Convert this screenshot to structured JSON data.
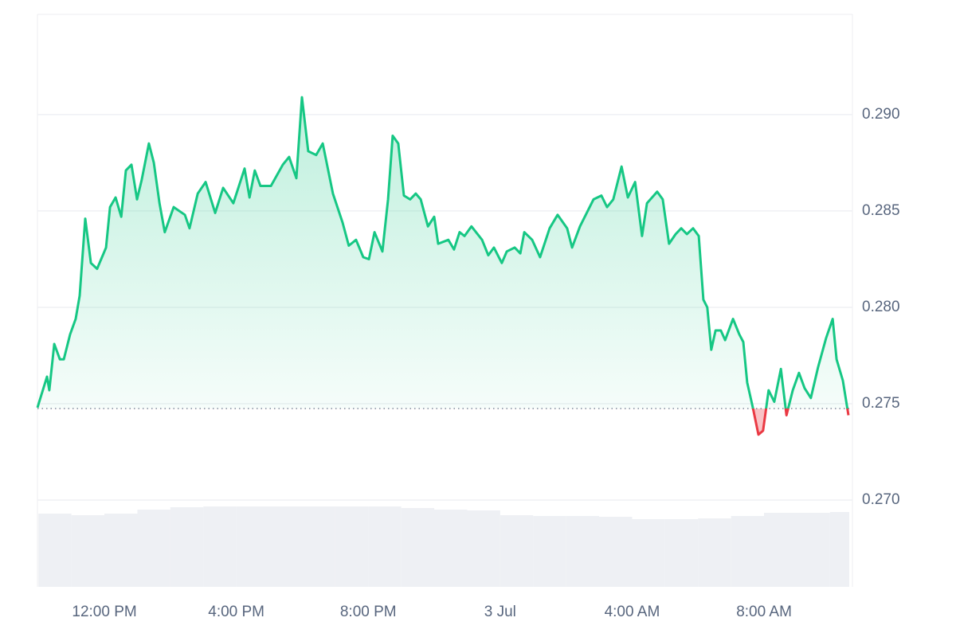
{
  "chart_data": {
    "type": "line",
    "x": [
      9.97,
      10.26,
      10.33,
      10.48,
      10.65,
      10.77,
      10.96,
      11.13,
      11.25,
      11.42,
      11.59,
      11.78,
      12.05,
      12.17,
      12.34,
      12.51,
      12.65,
      12.82,
      12.99,
      13.13,
      13.35,
      13.5,
      13.67,
      13.83,
      14.1,
      14.44,
      14.58,
      14.83,
      15.07,
      15.36,
      15.6,
      15.91,
      16.25,
      16.4,
      16.56,
      16.73,
      17.05,
      17.41,
      17.6,
      17.82,
      17.99,
      18.18,
      18.42,
      18.62,
      18.93,
      19.22,
      19.41,
      19.63,
      19.85,
      20.02,
      20.19,
      20.43,
      20.6,
      20.74,
      20.91,
      21.08,
      21.27,
      21.44,
      21.59,
      21.81,
      22.0,
      22.12,
      22.43,
      22.6,
      22.77,
      22.92,
      23.13,
      23.45,
      23.64,
      23.81,
      24.05,
      24.2,
      24.44,
      24.61,
      24.73,
      24.97,
      25.21,
      25.5,
      25.74,
      26.03,
      26.18,
      26.42,
      26.83,
      27.07,
      27.24,
      27.43,
      27.68,
      27.87,
      28.09,
      28.3,
      28.45,
      28.76,
      28.93,
      29.12,
      29.32,
      29.49,
      29.66,
      29.85,
      30.02,
      30.16,
      30.28,
      30.4,
      30.53,
      30.69,
      30.82,
      31.06,
      31.25,
      31.37,
      31.49,
      31.66,
      31.83,
      31.97,
      32.14,
      32.31,
      32.51,
      32.68,
      32.87,
      33.06,
      33.23,
      33.42,
      33.64,
      33.88,
      34.08,
      34.2,
      34.39,
      34.56
    ],
    "values": [
      0.2748,
      0.2764,
      0.2757,
      0.2781,
      0.2773,
      0.2773,
      0.2786,
      0.2794,
      0.2806,
      0.2846,
      0.2823,
      0.282,
      0.2831,
      0.2852,
      0.2857,
      0.2847,
      0.2871,
      0.2874,
      0.2856,
      0.2866,
      0.2885,
      0.2875,
      0.2854,
      0.2839,
      0.2852,
      0.2848,
      0.2841,
      0.2859,
      0.2865,
      0.2849,
      0.2862,
      0.2854,
      0.2872,
      0.2857,
      0.2871,
      0.2863,
      0.2863,
      0.2874,
      0.2878,
      0.2867,
      0.2909,
      0.2881,
      0.2879,
      0.2885,
      0.2859,
      0.2844,
      0.2832,
      0.2835,
      0.2826,
      0.2825,
      0.2839,
      0.2829,
      0.2856,
      0.2889,
      0.2885,
      0.2858,
      0.2856,
      0.2859,
      0.2856,
      0.2842,
      0.2847,
      0.2833,
      0.2835,
      0.283,
      0.2839,
      0.2837,
      0.2842,
      0.2835,
      0.2827,
      0.2831,
      0.2823,
      0.2829,
      0.2831,
      0.2828,
      0.2839,
      0.2835,
      0.2826,
      0.2841,
      0.2848,
      0.2841,
      0.2831,
      0.2842,
      0.2856,
      0.2858,
      0.2852,
      0.2856,
      0.2873,
      0.2857,
      0.2865,
      0.2837,
      0.2854,
      0.286,
      0.2856,
      0.2833,
      0.2838,
      0.2841,
      0.2838,
      0.2841,
      0.2837,
      0.2804,
      0.28,
      0.2778,
      0.2788,
      0.2788,
      0.2783,
      0.2794,
      0.2786,
      0.2782,
      0.2761,
      0.2748,
      0.2734,
      0.2736,
      0.2757,
      0.2751,
      0.2768,
      0.2744,
      0.2757,
      0.2766,
      0.2758,
      0.2753,
      0.2769,
      0.2784,
      0.2794,
      0.2773,
      0.2762,
      0.2744
    ],
    "color": "#16c784",
    "down_color": "#ea3943",
    "baseline": 0.27475,
    "xlim": [
      9.97,
      34.68
    ],
    "xticks": [
      {
        "value": 12,
        "label": "12:00 PM"
      },
      {
        "value": 16,
        "label": "4:00 PM"
      },
      {
        "value": 20,
        "label": "8:00 PM"
      },
      {
        "value": 24,
        "label": "3 Jul"
      },
      {
        "value": 28,
        "label": "4:00 AM"
      },
      {
        "value": 32,
        "label": "8:00 AM"
      }
    ],
    "ylim": [
      0.2655,
      0.2952
    ],
    "yticks": [
      {
        "value": 0.27,
        "label": "0.270"
      },
      0.275,
      {
        "value": 0.28,
        "label": "0.280"
      },
      0.285,
      {
        "value": 0.29,
        "label": "0.290"
      }
    ],
    "grid": true,
    "volume": {
      "color": "#eef0f4",
      "x": [
        10,
        11,
        12,
        13,
        14,
        15,
        16,
        17,
        18,
        19,
        20,
        21,
        22,
        23,
        24,
        25,
        26,
        27,
        28,
        29,
        30,
        31,
        32,
        33,
        34
      ],
      "values": [
        92,
        90,
        92,
        97,
        100,
        101,
        101,
        101,
        101,
        101,
        101,
        99,
        97,
        96,
        90,
        89,
        89,
        88,
        85,
        85,
        86,
        89,
        93,
        93,
        94
      ]
    }
  }
}
